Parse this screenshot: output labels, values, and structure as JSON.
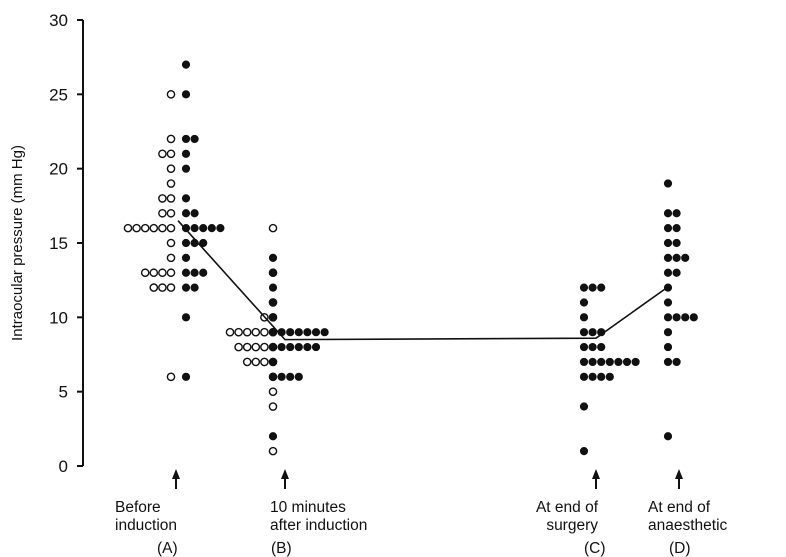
{
  "chart_data": {
    "type": "scatter",
    "title": "",
    "ylabel": "Intraocular pressure (mm Hg)",
    "ylim": [
      0,
      30
    ],
    "yticks": [
      0,
      5,
      10,
      15,
      20,
      25,
      30
    ],
    "grid": false,
    "legend": "none",
    "categories": [
      {
        "label": [
          "Before",
          "induction"
        ],
        "letter": "(A)"
      },
      {
        "label": [
          "10 minutes",
          "after induction"
        ],
        "letter": "(B)"
      },
      {
        "label": [
          "At end of",
          "surgery"
        ],
        "letter": "(C)"
      },
      {
        "label": [
          "At end of",
          "anaesthetic"
        ],
        "letter": "(D)"
      }
    ],
    "series": [
      {
        "marker": "open",
        "groups": [
          {
            "category": 0,
            "values": [
              25,
              22,
              21,
              21,
              20,
              19,
              18,
              18,
              17,
              17,
              16,
              16,
              16,
              16,
              16,
              16,
              15,
              14,
              13,
              13,
              13,
              13,
              12,
              12,
              12,
              6
            ]
          },
          {
            "category": 1,
            "values": [
              16,
              13,
              11,
              10,
              10,
              9,
              9,
              9,
              9,
              9,
              9,
              8,
              8,
              8,
              8,
              8,
              7,
              7,
              7,
              7,
              6,
              5,
              4,
              1
            ]
          }
        ]
      },
      {
        "marker": "filled",
        "groups": [
          {
            "category": 0,
            "values": [
              27,
              25,
              22,
              22,
              21,
              20,
              18,
              17,
              17,
              16,
              16,
              16,
              16,
              16,
              15,
              15,
              15,
              14,
              13,
              13,
              13,
              12,
              12,
              10,
              6
            ]
          },
          {
            "category": 1,
            "values": [
              14,
              13,
              12,
              11,
              10,
              9,
              9,
              9,
              9,
              9,
              9,
              9,
              8,
              8,
              8,
              8,
              8,
              8,
              7,
              6,
              6,
              6,
              6,
              2
            ]
          },
          {
            "category": 2,
            "values": [
              12,
              12,
              12,
              11,
              10,
              9,
              9,
              9,
              8,
              8,
              8,
              7,
              7,
              7,
              7,
              7,
              7,
              7,
              6,
              6,
              6,
              6,
              4,
              1
            ]
          },
          {
            "category": 3,
            "values": [
              19,
              17,
              17,
              16,
              16,
              15,
              15,
              14,
              14,
              14,
              13,
              13,
              12,
              11,
              10,
              10,
              10,
              10,
              9,
              8,
              7,
              7,
              2
            ]
          }
        ]
      }
    ],
    "mean_line": {
      "x": [
        0,
        1,
        2,
        3
      ],
      "values": [
        16.5,
        8.5,
        8.6,
        12
      ]
    }
  }
}
